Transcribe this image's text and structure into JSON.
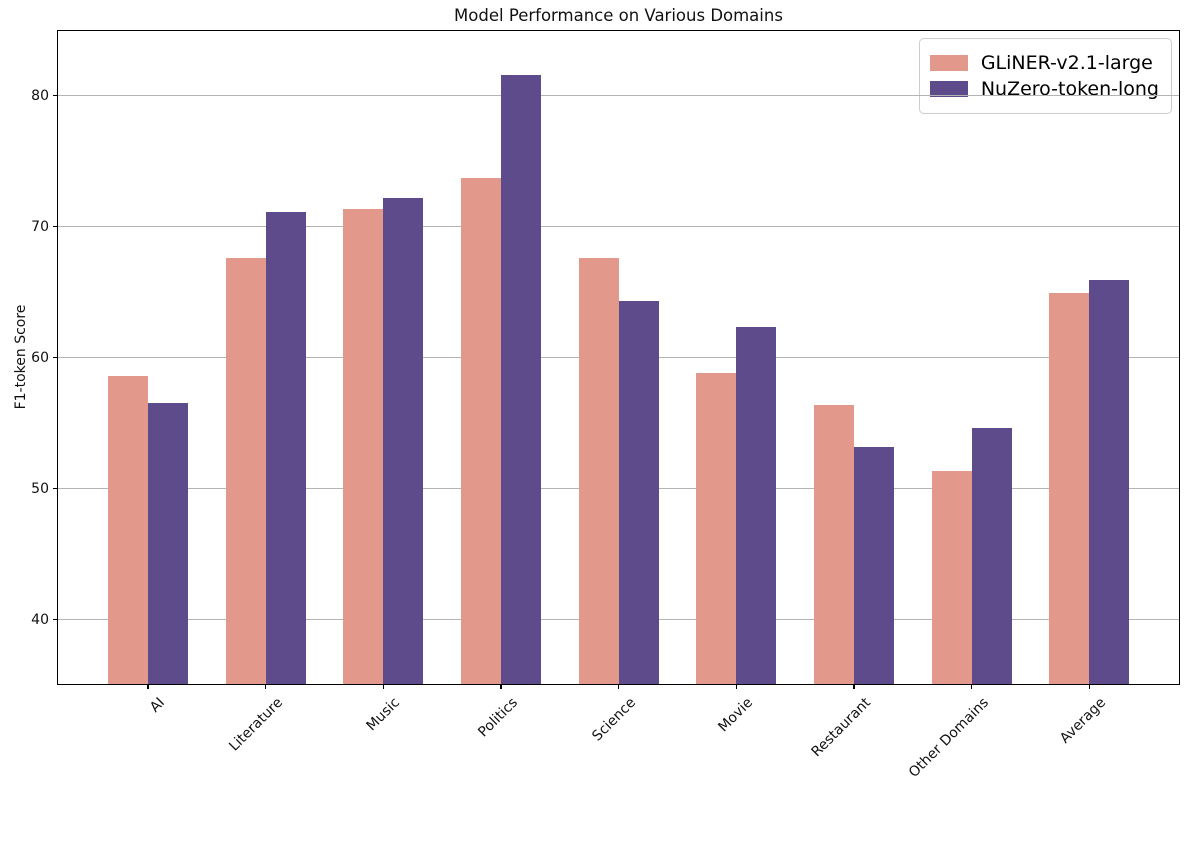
{
  "chart_data": {
    "type": "bar",
    "title": "Model Performance on Various Domains",
    "ylabel": "F1-token Score",
    "xlabel": "",
    "categories": [
      "AI",
      "Literature",
      "Music",
      "Politics",
      "Science",
      "Movie",
      "Restaurant",
      "Other Domains",
      "Average"
    ],
    "series": [
      {
        "name": "GLiNER-v2.1-large",
        "color": "#e2988a",
        "values": [
          58.6,
          67.6,
          71.3,
          73.7,
          67.6,
          58.8,
          56.4,
          51.3,
          64.9
        ]
      },
      {
        "name": "NuZero-token-long",
        "color": "#5e4b8c",
        "values": [
          56.5,
          71.1,
          72.2,
          81.6,
          64.3,
          62.3,
          53.2,
          54.6,
          65.9
        ]
      }
    ],
    "ylim": [
      35,
      85
    ],
    "yticks": [
      40,
      50,
      60,
      70,
      80
    ],
    "grid": "horizontal",
    "grid_color": "#b4b4b4",
    "legend_position": "upper right",
    "xtick_rotation": 45,
    "axis_color": "#000000",
    "background_color": "#ffffff"
  }
}
